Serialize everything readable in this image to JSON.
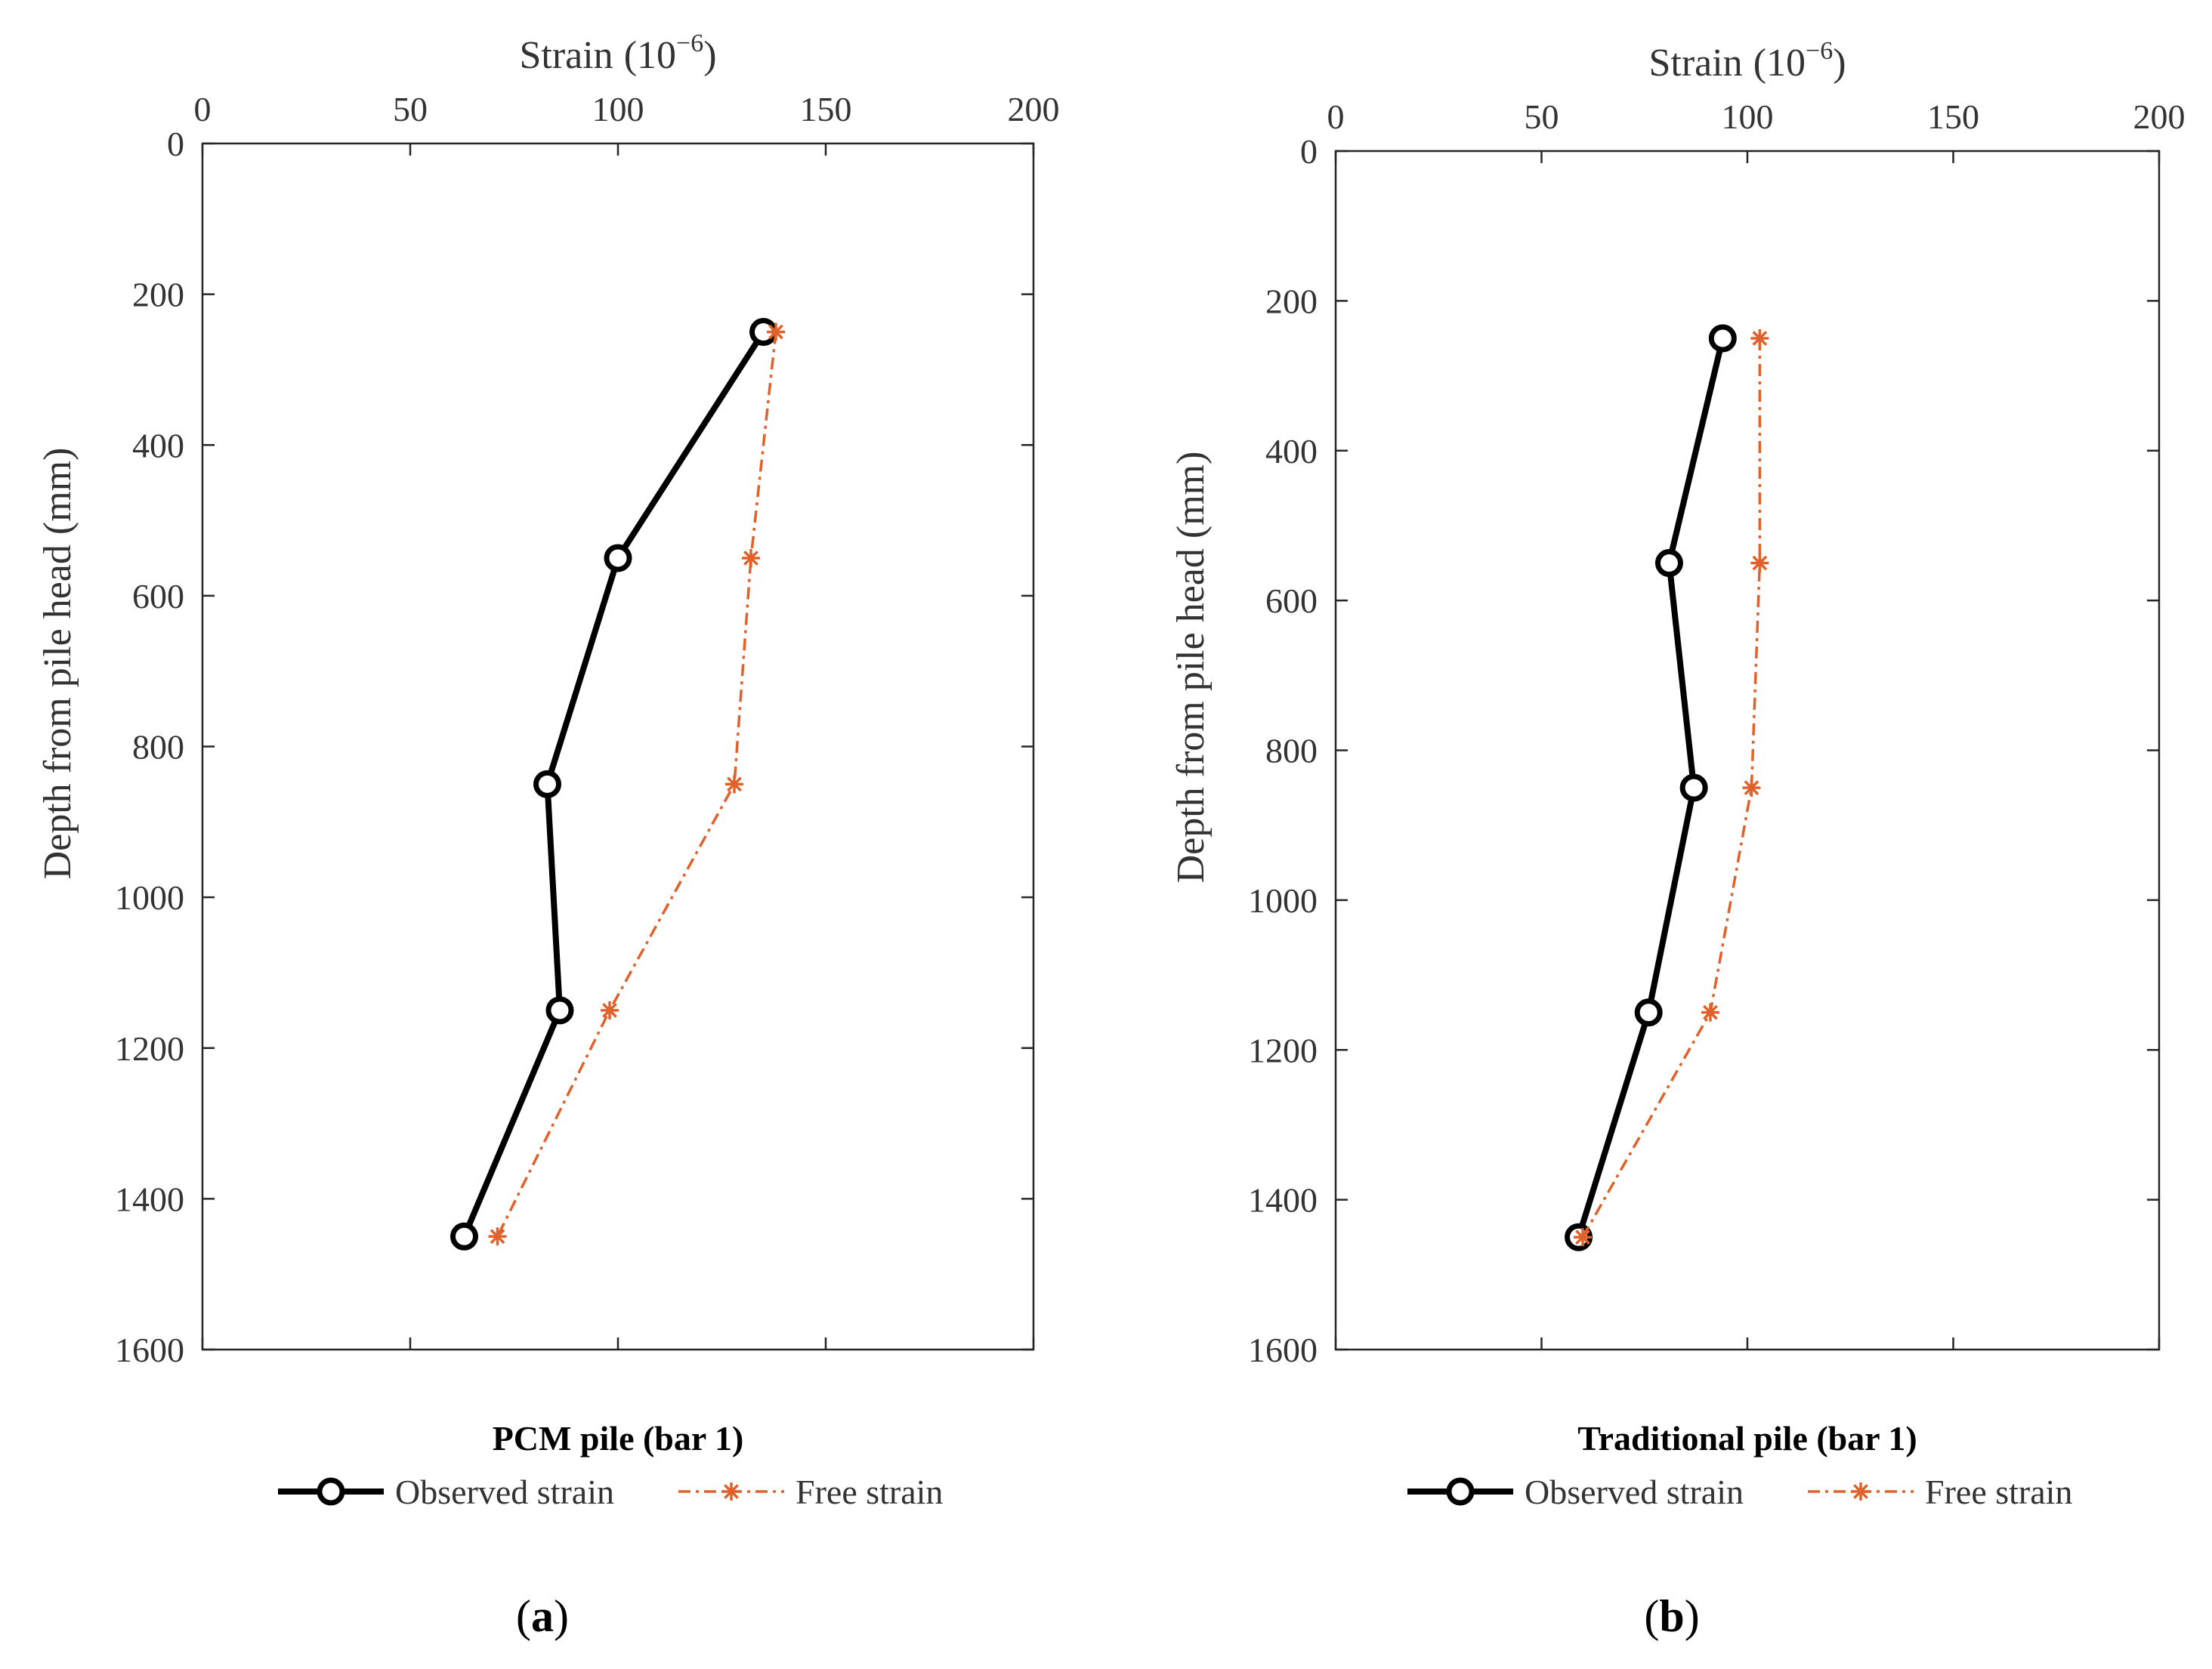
{
  "chart_data": [
    {
      "type": "line",
      "panel_label": "a",
      "title": "PCM pile (bar 1)",
      "xlabel": "Strain",
      "xlabel_unit": "(10",
      "xlabel_exp": "−6",
      "xlabel_close": ")",
      "ylabel": "Depth from pile head (mm)",
      "xlim": [
        0,
        200
      ],
      "ylim": [
        0,
        1600
      ],
      "y_inverted": true,
      "x_axis_position": "top",
      "xticks": [
        0,
        50,
        100,
        150,
        200
      ],
      "yticks": [
        0,
        200,
        400,
        600,
        800,
        1000,
        1200,
        1400,
        1600
      ],
      "series": [
        {
          "name": "Observed strain",
          "color": "#000000",
          "marker": "circle",
          "line_style": "solid",
          "x": [
            135,
            100,
            83,
            86,
            63
          ],
          "y": [
            250,
            550,
            850,
            1150,
            1450
          ]
        },
        {
          "name": "Free strain",
          "color": "#E0622A",
          "marker": "asterisk",
          "line_style": "dash-dot",
          "x": [
            138,
            132,
            128,
            98,
            71
          ],
          "y": [
            250,
            550,
            850,
            1150,
            1450
          ]
        }
      ],
      "legend": "bottom"
    },
    {
      "type": "line",
      "panel_label": "b",
      "title": "Traditional pile (bar 1)",
      "xlabel": "Strain",
      "xlabel_unit": "(10",
      "xlabel_exp": "−6",
      "xlabel_close": ")",
      "ylabel": "Depth from pile head (mm)",
      "xlim": [
        0,
        200
      ],
      "ylim": [
        0,
        1600
      ],
      "y_inverted": true,
      "x_axis_position": "top",
      "xticks": [
        0,
        50,
        100,
        150,
        200
      ],
      "yticks": [
        0,
        200,
        400,
        600,
        800,
        1000,
        1200,
        1400,
        1600
      ],
      "series": [
        {
          "name": "Observed strain",
          "color": "#000000",
          "marker": "circle",
          "line_style": "solid",
          "x": [
            94,
            81,
            87,
            76,
            59
          ],
          "y": [
            250,
            550,
            850,
            1150,
            1450
          ]
        },
        {
          "name": "Free strain",
          "color": "#E0622A",
          "marker": "asterisk",
          "line_style": "dash-dot",
          "x": [
            103,
            103,
            101,
            91,
            60
          ],
          "y": [
            250,
            550,
            850,
            1150,
            1450
          ]
        }
      ],
      "legend": "bottom"
    }
  ]
}
